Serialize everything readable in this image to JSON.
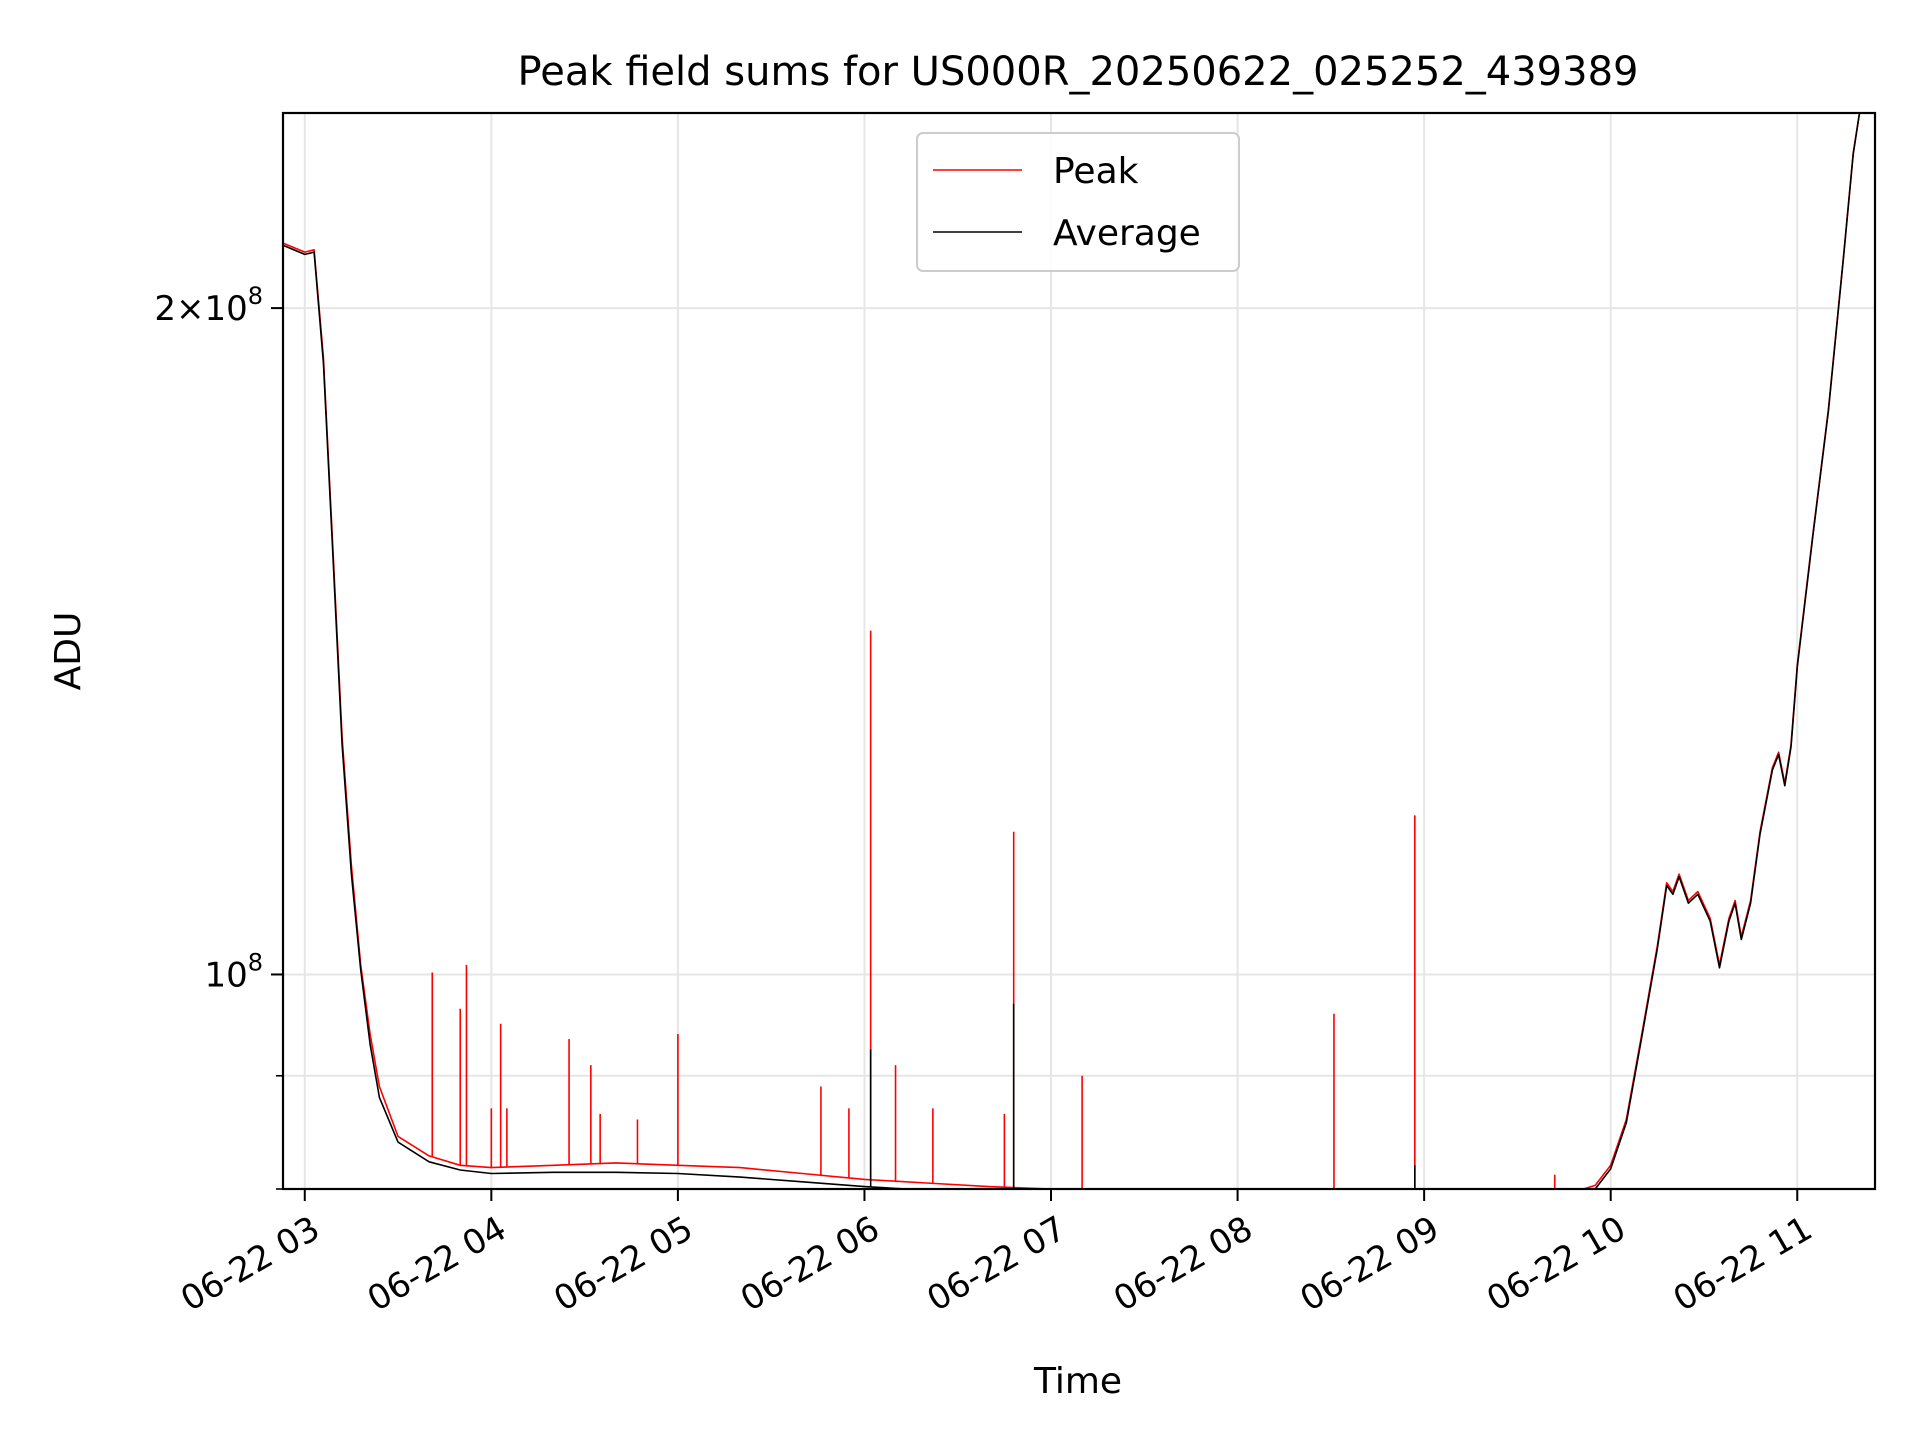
{
  "chart_data": {
    "type": "line",
    "title": "Peak field sums for US000R_20250622_025252_439389",
    "xlabel": "Time",
    "ylabel": "ADU",
    "y_scale": "log",
    "xlim": [
      "2025-06-22 02:53",
      "2025-06-22 11:25"
    ],
    "ylim": [
      80000000,
      245000000
    ],
    "x_ticks": [
      "06-22 03",
      "06-22 04",
      "06-22 05",
      "06-22 06",
      "06-22 07",
      "06-22 08",
      "06-22 09",
      "06-22 10",
      "06-22 11"
    ],
    "y_ticks": [
      {
        "label_base": "2×10",
        "label_exp": "8",
        "value": 200000000
      },
      {
        "label_base": "10",
        "label_exp": "8",
        "value": 100000000
      }
    ],
    "grid": true,
    "legend_position": "top-center",
    "series": [
      {
        "name": "Peak",
        "color": "#ff0000",
        "points": [
          [
            "2025-06-22 02:53",
            214000000
          ],
          [
            "2025-06-22 03:00",
            212000000
          ],
          [
            "2025-06-22 03:03",
            212500000
          ],
          [
            "2025-06-22 03:06",
            190000000
          ],
          [
            "2025-06-22 03:09",
            156000000
          ],
          [
            "2025-06-22 03:12",
            128000000
          ],
          [
            "2025-06-22 03:15",
            112000000
          ],
          [
            "2025-06-22 03:18",
            101000000
          ],
          [
            "2025-06-22 03:21",
            94000000
          ],
          [
            "2025-06-22 03:24",
            89000000
          ],
          [
            "2025-06-22 03:30",
            84500000
          ],
          [
            "2025-06-22 03:40",
            82800000
          ],
          [
            "2025-06-22 03:50",
            82000000
          ],
          [
            "2025-06-22 04:00",
            81800000
          ],
          [
            "2025-06-22 04:20",
            82000000
          ],
          [
            "2025-06-22 04:40",
            82200000
          ],
          [
            "2025-06-22 05:00",
            82000000
          ],
          [
            "2025-06-22 05:20",
            81800000
          ],
          [
            "2025-06-22 05:40",
            81300000
          ],
          [
            "2025-06-22 06:00",
            80800000
          ],
          [
            "2025-06-22 06:20",
            80500000
          ],
          [
            "2025-06-22 06:40",
            80200000
          ],
          [
            "2025-06-22 07:00",
            80000000
          ],
          [
            "2025-06-22 07:20",
            79900000
          ],
          [
            "2025-06-22 07:40",
            79600000
          ],
          [
            "2025-06-22 08:00",
            79700000
          ],
          [
            "2025-06-22 08:30",
            79500000
          ],
          [
            "2025-06-22 08:50",
            79900000
          ],
          [
            "2025-06-22 09:10",
            79800000
          ],
          [
            "2025-06-22 09:30",
            79700000
          ],
          [
            "2025-06-22 09:50",
            79900000
          ],
          [
            "2025-06-22 09:55",
            80300000
          ],
          [
            "2025-06-22 10:00",
            82000000
          ],
          [
            "2025-06-22 10:05",
            86000000
          ],
          [
            "2025-06-22 10:10",
            94000000
          ],
          [
            "2025-06-22 10:15",
            103000000
          ],
          [
            "2025-06-22 10:18",
            110000000
          ],
          [
            "2025-06-22 10:20",
            109000000
          ],
          [
            "2025-06-22 10:22",
            111000000
          ],
          [
            "2025-06-22 10:25",
            108000000
          ],
          [
            "2025-06-22 10:28",
            109000000
          ],
          [
            "2025-06-22 10:32",
            106000000
          ],
          [
            "2025-06-22 10:35",
            101000000
          ],
          [
            "2025-06-22 10:38",
            106000000
          ],
          [
            "2025-06-22 10:40",
            108000000
          ],
          [
            "2025-06-22 10:42",
            104000000
          ],
          [
            "2025-06-22 10:45",
            108000000
          ],
          [
            "2025-06-22 10:48",
            116000000
          ],
          [
            "2025-06-22 10:52",
            124000000
          ],
          [
            "2025-06-22 10:54",
            126000000
          ],
          [
            "2025-06-22 10:56",
            122000000
          ],
          [
            "2025-06-22 10:58",
            127000000
          ],
          [
            "2025-06-22 11:00",
            138000000
          ],
          [
            "2025-06-22 11:05",
            158000000
          ],
          [
            "2025-06-22 11:10",
            180000000
          ],
          [
            "2025-06-22 11:15",
            212000000
          ],
          [
            "2025-06-22 11:18",
            235000000
          ],
          [
            "2025-06-22 11:20",
            245000000
          ],
          [
            "2025-06-22 11:25",
            245000000
          ]
        ],
        "spikes": [
          [
            "2025-06-22 03:41",
            100200000
          ],
          [
            "2025-06-22 03:50",
            96500000
          ],
          [
            "2025-06-22 03:52",
            101000000
          ],
          [
            "2025-06-22 04:00",
            87000000
          ],
          [
            "2025-06-22 04:03",
            95000000
          ],
          [
            "2025-06-22 04:05",
            87000000
          ],
          [
            "2025-06-22 04:25",
            93500000
          ],
          [
            "2025-06-22 04:32",
            91000000
          ],
          [
            "2025-06-22 04:35",
            86500000
          ],
          [
            "2025-06-22 04:47",
            86000000
          ],
          [
            "2025-06-22 05:00",
            94000000
          ],
          [
            "2025-06-22 05:46",
            89000000
          ],
          [
            "2025-06-22 05:55",
            87000000
          ],
          [
            "2025-06-22 06:02",
            143000000
          ],
          [
            "2025-06-22 06:10",
            91000000
          ],
          [
            "2025-06-22 06:22",
            87000000
          ],
          [
            "2025-06-22 06:45",
            86500000
          ],
          [
            "2025-06-22 06:48",
            116000000
          ],
          [
            "2025-06-22 07:10",
            90000000
          ],
          [
            "2025-06-22 08:31",
            96000000
          ],
          [
            "2025-06-22 08:57",
            118000000
          ],
          [
            "2025-06-22 09:42",
            81200000
          ]
        ]
      },
      {
        "name": "Average",
        "color": "#000000",
        "points": [
          [
            "2025-06-22 02:53",
            213500000
          ],
          [
            "2025-06-22 03:00",
            211500000
          ],
          [
            "2025-06-22 03:03",
            212000000
          ],
          [
            "2025-06-22 03:06",
            189000000
          ],
          [
            "2025-06-22 03:09",
            155000000
          ],
          [
            "2025-06-22 03:12",
            127000000
          ],
          [
            "2025-06-22 03:15",
            111000000
          ],
          [
            "2025-06-22 03:18",
            100500000
          ],
          [
            "2025-06-22 03:21",
            93000000
          ],
          [
            "2025-06-22 03:24",
            88000000
          ],
          [
            "2025-06-22 03:30",
            84000000
          ],
          [
            "2025-06-22 03:40",
            82300000
          ],
          [
            "2025-06-22 03:50",
            81600000
          ],
          [
            "2025-06-22 04:00",
            81300000
          ],
          [
            "2025-06-22 04:20",
            81400000
          ],
          [
            "2025-06-22 04:40",
            81400000
          ],
          [
            "2025-06-22 05:00",
            81300000
          ],
          [
            "2025-06-22 05:20",
            81000000
          ],
          [
            "2025-06-22 05:40",
            80600000
          ],
          [
            "2025-06-22 06:00",
            80200000
          ],
          [
            "2025-06-22 06:20",
            79900000
          ],
          [
            "2025-06-22 06:40",
            79500000
          ],
          [
            "2025-06-22 07:00",
            79200000
          ],
          [
            "2025-06-22 07:20",
            79200000
          ],
          [
            "2025-06-22 07:40",
            79200000
          ],
          [
            "2025-06-22 08:00",
            79300000
          ],
          [
            "2025-06-22 08:30",
            79100000
          ],
          [
            "2025-06-22 08:50",
            79500000
          ],
          [
            "2025-06-22 09:10",
            79500000
          ],
          [
            "2025-06-22 09:30",
            79400000
          ],
          [
            "2025-06-22 09:50",
            79600000
          ],
          [
            "2025-06-22 09:55",
            80000000
          ],
          [
            "2025-06-22 10:00",
            81700000
          ],
          [
            "2025-06-22 10:05",
            85700000
          ],
          [
            "2025-06-22 10:10",
            93700000
          ],
          [
            "2025-06-22 10:15",
            102700000
          ],
          [
            "2025-06-22 10:18",
            109700000
          ],
          [
            "2025-06-22 10:20",
            108700000
          ],
          [
            "2025-06-22 10:22",
            110700000
          ],
          [
            "2025-06-22 10:25",
            107700000
          ],
          [
            "2025-06-22 10:28",
            108700000
          ],
          [
            "2025-06-22 10:32",
            105700000
          ],
          [
            "2025-06-22 10:35",
            100700000
          ],
          [
            "2025-06-22 10:38",
            105700000
          ],
          [
            "2025-06-22 10:40",
            107700000
          ],
          [
            "2025-06-22 10:42",
            103700000
          ],
          [
            "2025-06-22 10:45",
            107700000
          ],
          [
            "2025-06-22 10:48",
            115700000
          ],
          [
            "2025-06-22 10:52",
            123700000
          ],
          [
            "2025-06-22 10:54",
            125700000
          ],
          [
            "2025-06-22 10:56",
            121700000
          ],
          [
            "2025-06-22 10:58",
            126700000
          ],
          [
            "2025-06-22 11:00",
            137700000
          ],
          [
            "2025-06-22 11:05",
            157700000
          ],
          [
            "2025-06-22 11:10",
            179700000
          ],
          [
            "2025-06-22 11:15",
            211700000
          ],
          [
            "2025-06-22 11:18",
            234700000
          ],
          [
            "2025-06-22 11:20",
            245000000
          ],
          [
            "2025-06-22 11:25",
            245000000
          ]
        ],
        "spikes": [
          [
            "2025-06-22 06:02",
            92500000
          ],
          [
            "2025-06-22 06:48",
            97000000
          ],
          [
            "2025-06-22 08:57",
            82000000
          ]
        ]
      }
    ]
  }
}
